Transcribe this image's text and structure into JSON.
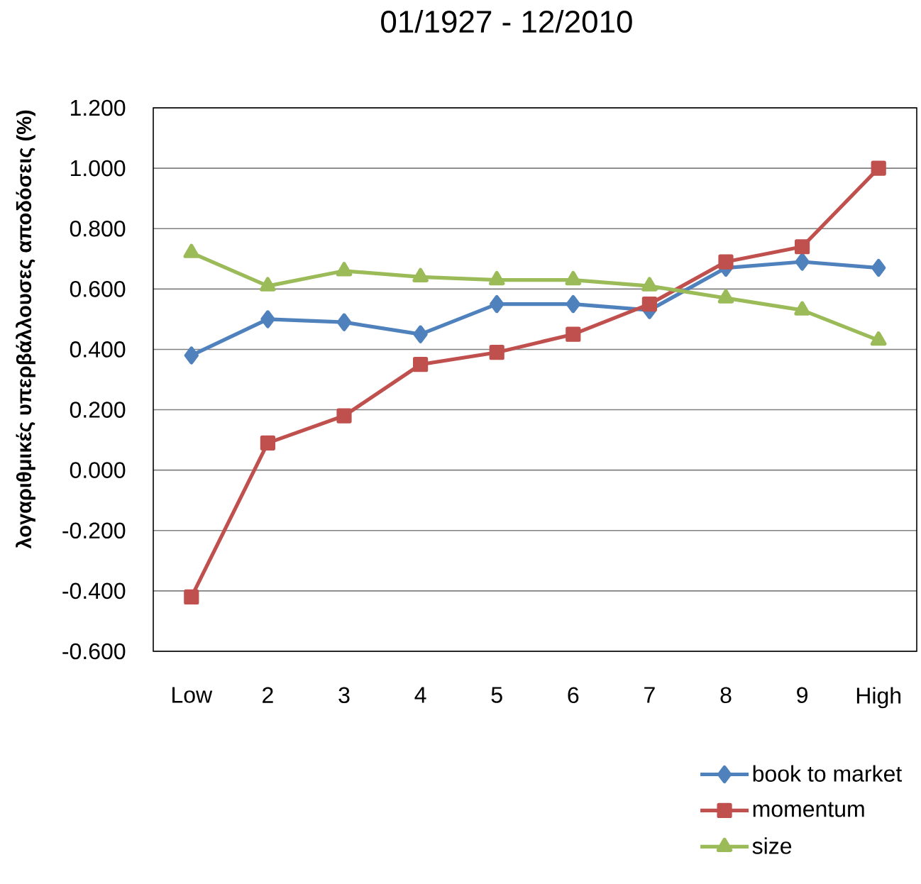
{
  "chart_data": {
    "type": "line",
    "title": "01/1927 - 12/2010",
    "ylabel": "λογαριθμικές υπερβάλλουσες αποδόσεις (%)",
    "categories": [
      "Low",
      "2",
      "3",
      "4",
      "5",
      "6",
      "7",
      "8",
      "9",
      "High"
    ],
    "series": [
      {
        "name": "book to market",
        "color": "#4f81bd",
        "marker": "diamond",
        "values": [
          0.38,
          0.5,
          0.49,
          0.45,
          0.55,
          0.55,
          0.53,
          0.67,
          0.69,
          0.67
        ]
      },
      {
        "name": "momentum",
        "color": "#c0504d",
        "marker": "square",
        "values": [
          -0.42,
          0.09,
          0.18,
          0.35,
          0.39,
          0.45,
          0.55,
          0.69,
          0.74,
          1.0
        ]
      },
      {
        "name": "size",
        "color": "#9bbb59",
        "marker": "triangle",
        "values": [
          0.72,
          0.61,
          0.66,
          0.64,
          0.63,
          0.63,
          0.61,
          0.57,
          0.53,
          0.43
        ]
      }
    ],
    "ylim": [
      -0.6,
      1.2
    ],
    "yticks": [
      {
        "value": -0.6,
        "label": "-0.600"
      },
      {
        "value": -0.4,
        "label": "-0.400"
      },
      {
        "value": -0.2,
        "label": "-0.200"
      },
      {
        "value": 0,
        "label": "0.000"
      },
      {
        "value": 0.2,
        "label": "0.200"
      },
      {
        "value": 0.4,
        "label": "0.400"
      },
      {
        "value": 0.6,
        "label": "0.600"
      },
      {
        "value": 0.8,
        "label": "0.800"
      },
      {
        "value": 1.0,
        "label": "1.000"
      },
      {
        "value": 1.2,
        "label": "1.200"
      }
    ],
    "grid": "y",
    "legend": "bottom right",
    "line_style": "solid"
  }
}
